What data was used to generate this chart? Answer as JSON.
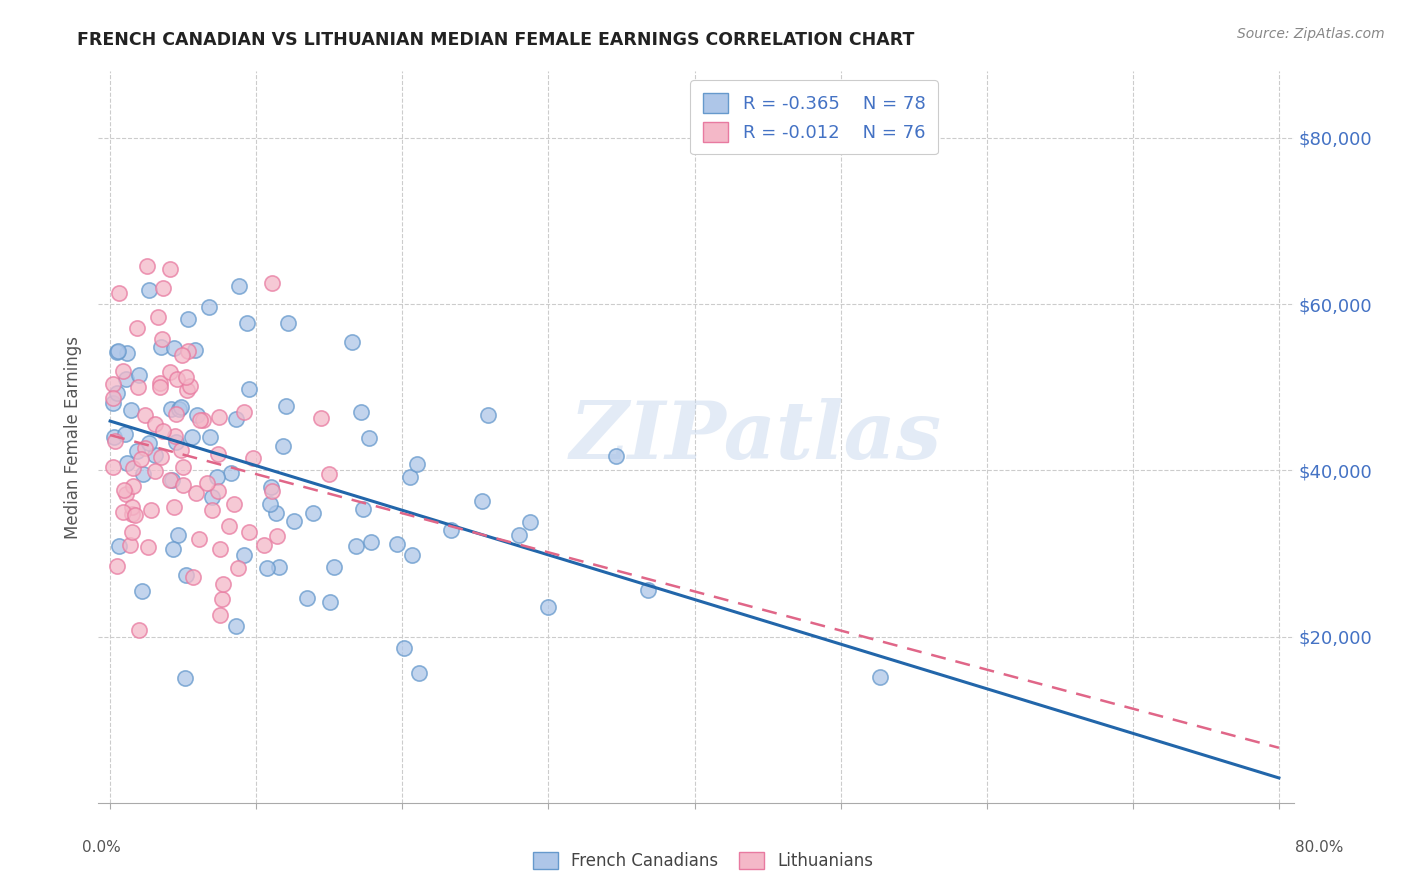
{
  "title": "FRENCH CANADIAN VS LITHUANIAN MEDIAN FEMALE EARNINGS CORRELATION CHART",
  "source": "Source: ZipAtlas.com",
  "ylabel": "Median Female Earnings",
  "watermark": "ZIPatlas",
  "legend_1_label": "French Canadians",
  "legend_2_label": "Lithuanians",
  "r1": "-0.365",
  "n1": "78",
  "r2": "-0.012",
  "n2": "76",
  "color_blue_fill": "#aec6e8",
  "color_pink_fill": "#f4b8c8",
  "color_blue_edge": "#6699cc",
  "color_pink_edge": "#e87aa0",
  "line_blue": "#2266aa",
  "line_pink": "#e06688",
  "axis_label_color": "#4472c4",
  "title_color": "#222222",
  "grid_color": "#cccccc",
  "ytick_values": [
    20000,
    40000,
    60000,
    80000
  ],
  "ytick_labels": [
    "$20,000",
    "$40,000",
    "$60,000",
    "$80,000"
  ],
  "ymin": 0,
  "ymax": 88000,
  "xmin": 0.0,
  "xmax": 0.8
}
